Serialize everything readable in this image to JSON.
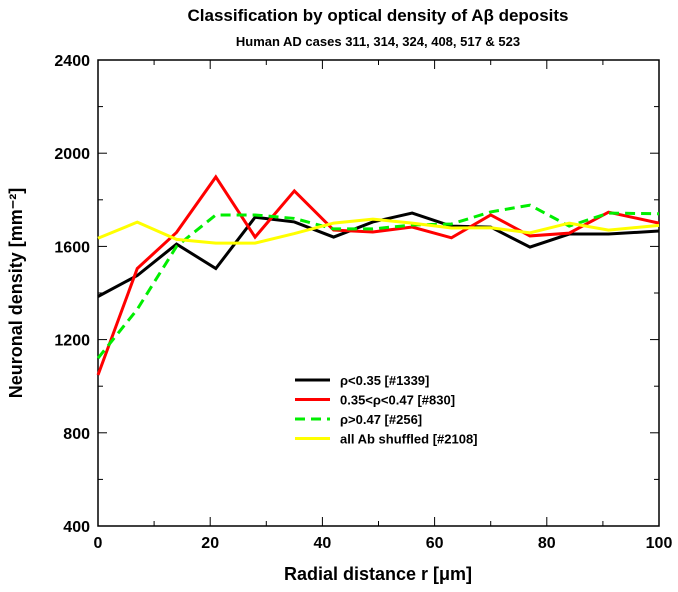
{
  "chart_data": {
    "type": "line",
    "title": "Classification by optical density of Aβ deposits",
    "subtitle": "Human AD cases 311, 314, 324, 408, 517 & 523",
    "xlabel": "Radial distance r [μm]",
    "ylabel": "Neuronal density [mm⁻²]",
    "xlim": [
      0,
      100
    ],
    "ylim": [
      400,
      2400
    ],
    "xticks": [
      0,
      20,
      40,
      60,
      80,
      100
    ],
    "yticks": [
      400,
      800,
      1200,
      1600,
      2000,
      2400
    ],
    "grid": false,
    "legend_position": "bottom-center",
    "x": [
      0,
      7,
      14,
      21,
      28,
      35,
      42,
      49,
      56,
      63,
      70,
      77,
      84,
      91,
      100
    ],
    "series": [
      {
        "name": "ρ<0.35 [#1339]",
        "color": "#000000",
        "dash": false,
        "values": [
          1385,
          1475,
          1610,
          1505,
          1725,
          1705,
          1640,
          1705,
          1743,
          1687,
          1683,
          1597,
          1653,
          1653,
          1666
        ]
      },
      {
        "name": "0.35<ρ<0.47 [#830]",
        "color": "#ff0000",
        "dash": false,
        "values": [
          1048,
          1505,
          1660,
          1898,
          1640,
          1838,
          1670,
          1662,
          1683,
          1637,
          1735,
          1645,
          1657,
          1747,
          1700
        ]
      },
      {
        "name": "ρ>0.47 [#256]",
        "color": "#00ee00",
        "dash": true,
        "values": [
          1120,
          1330,
          1600,
          1735,
          1735,
          1720,
          1675,
          1675,
          1692,
          1696,
          1748,
          1777,
          1687,
          1743,
          1740
        ]
      },
      {
        "name": "all Ab shuffled [#2108]",
        "color": "#ffff00",
        "dash": false,
        "values": [
          1635,
          1704,
          1630,
          1614,
          1614,
          1655,
          1700,
          1717,
          1700,
          1679,
          1680,
          1658,
          1700,
          1670,
          1690
        ]
      }
    ]
  }
}
